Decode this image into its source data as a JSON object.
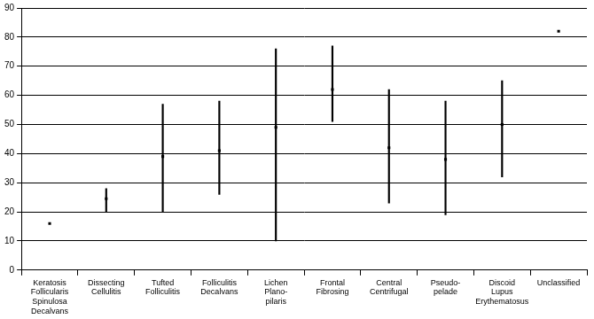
{
  "chart_data": {
    "type": "range",
    "categories": [
      [
        "Keratosis",
        "Follicularis",
        "Spinulosa",
        "Decalvans"
      ],
      [
        "Dissecting",
        "Cellulitis"
      ],
      [
        "Tufted",
        "Folliculitis"
      ],
      [
        "Folliculitis",
        "Decalvans"
      ],
      [
        "Lichen",
        "Plano-",
        "pilaris"
      ],
      [
        "Frontal",
        "Fibrosing"
      ],
      [
        "Central",
        "Centrifugal"
      ],
      [
        "Pseudo-",
        "pelade"
      ],
      [
        "Discoid",
        "Lupus",
        "Erythematosus"
      ],
      [
        "Unclassified"
      ]
    ],
    "values": [
      16,
      24.5,
      39,
      41,
      49,
      62,
      42,
      38,
      50,
      82
    ],
    "low": [
      null,
      20,
      20,
      26,
      10,
      51,
      23,
      19,
      32,
      null
    ],
    "high": [
      null,
      28,
      57,
      58,
      76,
      77,
      62,
      58,
      65,
      null
    ],
    "color": "#000000",
    "marker": "square",
    "ylim": [
      0,
      90
    ],
    "yticks": [
      0,
      10,
      20,
      30,
      40,
      50,
      60,
      70,
      80,
      90
    ],
    "grid": true
  }
}
